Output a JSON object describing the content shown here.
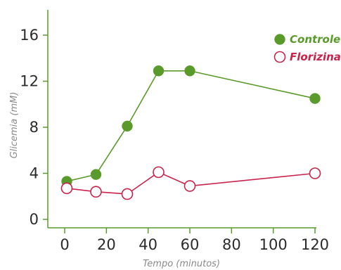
{
  "chart_data": {
    "type": "line",
    "title": "",
    "xlabel": "Tempo (minutos)",
    "ylabel": "Glicemia (mM)",
    "xlim": [
      0,
      120
    ],
    "ylim": [
      0,
      17
    ],
    "x_ticks": [
      "0",
      "20",
      "40",
      "60",
      "80",
      "100",
      "120"
    ],
    "y_ticks": [
      "0",
      "4",
      "8",
      "12",
      "16"
    ],
    "grid": false,
    "legend_position": "top-right",
    "series": [
      {
        "name": "Controle",
        "color": "#5a9a2a",
        "marker": "filled-circle",
        "x": [
          1,
          15,
          30,
          45,
          60,
          120
        ],
        "y": [
          3.3,
          3.9,
          8.1,
          12.9,
          12.9,
          10.5
        ]
      },
      {
        "name": "Florizina",
        "color": "#c8234a",
        "marker": "open-circle",
        "x": [
          1,
          15,
          30,
          45,
          60,
          120
        ],
        "y": [
          2.7,
          2.4,
          2.2,
          4.1,
          2.9,
          4.0
        ]
      }
    ]
  }
}
